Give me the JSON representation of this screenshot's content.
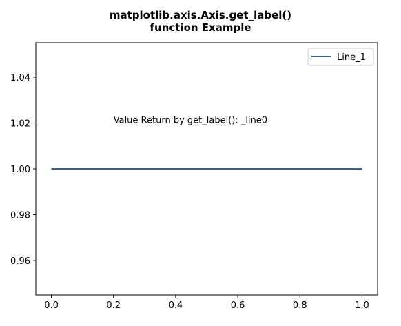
{
  "chart_data": {
    "type": "line",
    "title_line1": "matplotlib.axis.Axis.get_label()",
    "title_line2": "function Example",
    "xlabel": "",
    "ylabel": "",
    "x": [
      0.0,
      1.0
    ],
    "series": [
      {
        "name": "Line_1",
        "values": [
          1.0,
          1.0
        ],
        "color": "#3b5f86"
      }
    ],
    "xlim": [
      -0.05,
      1.05
    ],
    "ylim": [
      0.945,
      1.055
    ],
    "xticks": [
      0.0,
      0.2,
      0.4,
      0.6,
      0.8,
      1.0
    ],
    "xtick_labels": [
      "0.0",
      "0.2",
      "0.4",
      "0.6",
      "0.8",
      "1.0"
    ],
    "yticks": [
      0.96,
      0.98,
      1.0,
      1.02,
      1.04
    ],
    "ytick_labels": [
      "0.96",
      "0.98",
      "1.00",
      "1.02",
      "1.04"
    ],
    "grid": false,
    "legend_position": "top-right",
    "annotation": {
      "text": "Value Return by get_label(): _line0",
      "x": 0.2,
      "y": 1.02
    }
  }
}
